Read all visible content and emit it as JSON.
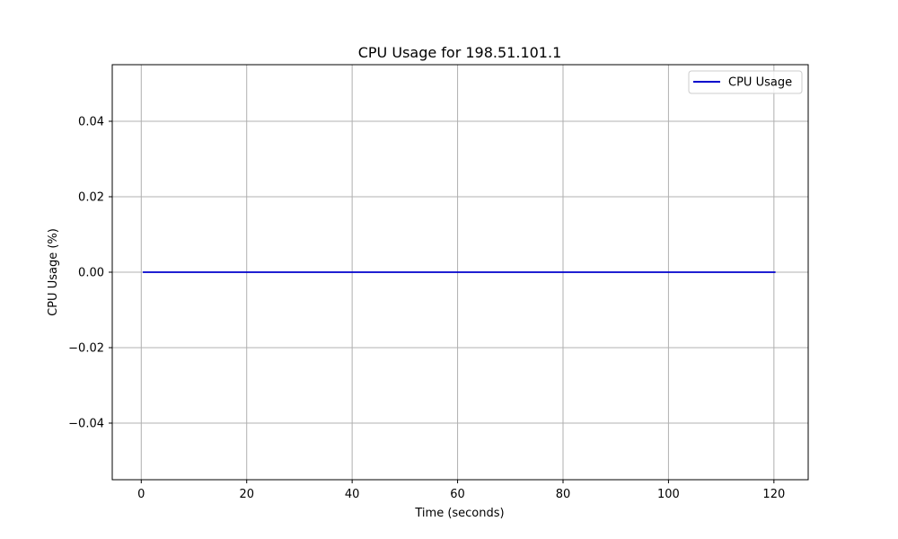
{
  "chart_data": {
    "type": "line",
    "title": "CPU Usage for 198.51.101.1",
    "xlabel": "Time (seconds)",
    "ylabel": "CPU Usage (%)",
    "xlim": [
      -5.5,
      126.5
    ],
    "ylim": [
      -0.055,
      0.055
    ],
    "xticks": [
      0,
      20,
      40,
      60,
      80,
      100,
      120
    ],
    "xtick_labels": [
      "0",
      "20",
      "40",
      "60",
      "80",
      "100",
      "120"
    ],
    "yticks": [
      -0.04,
      -0.02,
      0.0,
      0.02,
      0.04
    ],
    "ytick_labels": [
      "−0.04",
      "−0.02",
      "0.00",
      "0.02",
      "0.04"
    ],
    "grid": true,
    "legend_position": "top-right",
    "series": [
      {
        "name": "CPU Usage",
        "color": "#0000cc",
        "x": [
          0.3,
          120.3
        ],
        "y": [
          0.0,
          0.0
        ]
      }
    ]
  }
}
